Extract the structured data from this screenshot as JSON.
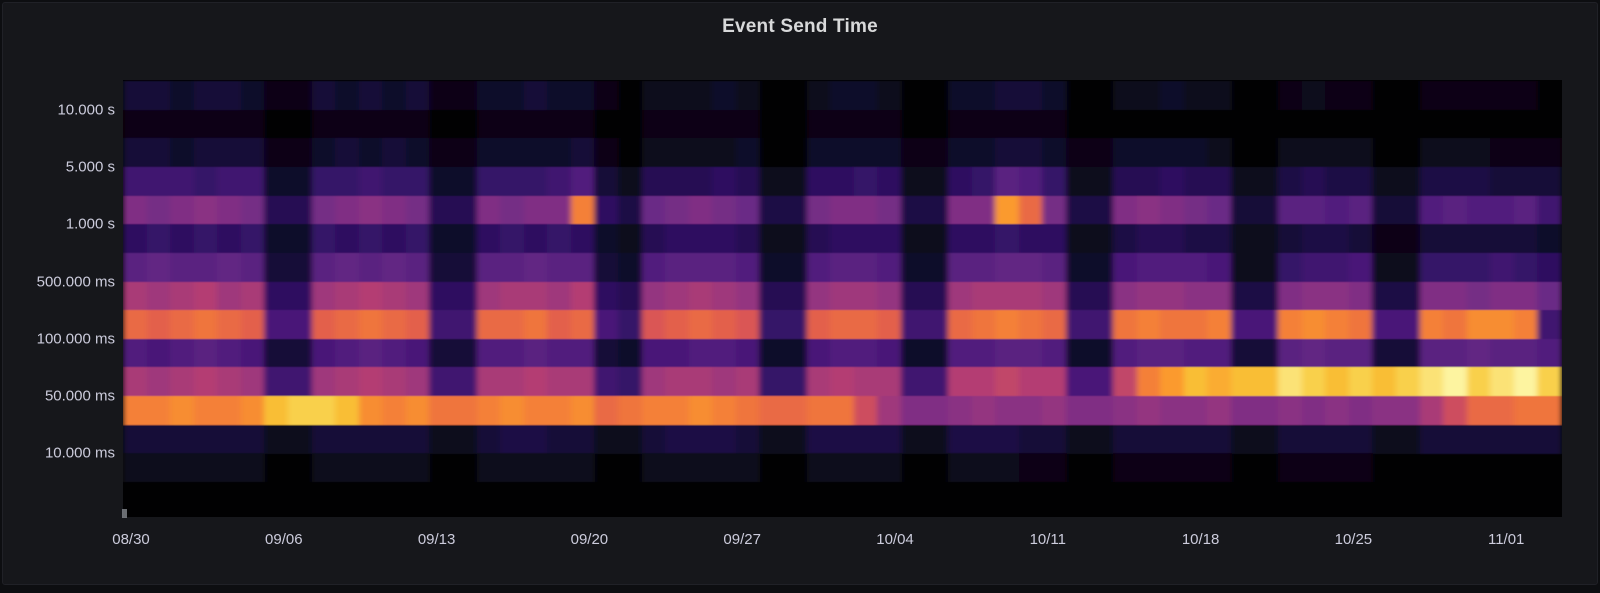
{
  "panel": {
    "title": "Event Send Time"
  },
  "colors": {
    "page_bg": "#0d0e11",
    "panel_bg": "#16171b",
    "plot_bg": "#010102",
    "title_text": "#d8d9da",
    "axis_text": "#ccccdc"
  },
  "chart_data": {
    "type": "heatmap",
    "title": "Event Send Time",
    "x_axis": {
      "tick_labels": [
        "08/30",
        "09/06",
        "09/13",
        "09/20",
        "09/27",
        "10/04",
        "10/11",
        "10/18",
        "10/25",
        "11/01"
      ],
      "unit": "date, weekly ticks"
    },
    "y_axis": {
      "tick_labels": [
        "10.000 s",
        "5.000 s",
        "1.000 s",
        "500.000 ms",
        "100.000 ms",
        "50.000 ms",
        "10.000 ms"
      ],
      "scale": "log (1-2-5 duration buckets, high at top)",
      "tick_at_row_boundary_below_row": [
        0,
        2,
        4,
        6,
        8,
        10,
        12
      ]
    },
    "columns": 61,
    "rows": 14,
    "value_encoding": "one base36 char per cell (0-9,a-z => 0-35), intensity = value/35, 0 = empty/black",
    "cells": [
      "4434431143434113343310222320023320033443002232200121100111110",
      "1111110011111001111100111110011110011111000000000000000000000",
      "4434441134343113333410222230033331133443113333200222200222111",
      "9998993388988338889b42666762277872278cb8226676622565522555444",
      "gfghgf66fghgf66gfggs75efgfe55fggf55gguqf55ghgfe44ccbc44bcbbc9",
      "7878783387878337878732677762267772277877225665522455411444443",
      "cdccdc44cdcdc44ccdcc43bcccb33bccb33ccddc33abbba22899a22888987",
      "kjkljk77jklkj77jkkjl76ijkji66ijji66jkkkj66hiihh55ghhg55ggfgge",
      "qpqrqpaapqrqp99qqrpqa8opqpo88pqqp99qrsrq99rsrrsaastsraasrtts9",
      "babcba44abcba44bbcbb43aabba33abba33bbccb33bccbb44cdcc44ccdccb",
      "kjklkj99jklkj99kklkk98jkkjk88klkk99llmllaamsuwvwwyxwxwxyzxyzx",
      "sstsstwxxwtstrrstsstqrsstsrqqrrnjgghihhigghihhigghghghhknqqrr",
      "4444442244444224554422455542255552255544224444422444422444444",
      "2222220022222002222200222220022220022211001111100111100000000"
    ],
    "notable_features": [
      "bright orange outlier in 1s row near 09/19",
      "bright orange outliers in 1s row near 10/08",
      "hot yellow band just above 50ms line from ~10/14 to 11/01",
      "golden peak in band below 50ms line around 09/06-09/10",
      "weekly dips (weekend gaps) across all bands"
    ],
    "colormap": {
      "name": "magma/inferno-like (black-purple-orange-yellow)",
      "stops": [
        [
          0.0,
          "#030106"
        ],
        [
          0.1,
          "#130b30"
        ],
        [
          0.2,
          "#2d1060"
        ],
        [
          0.3,
          "#4d1a7c"
        ],
        [
          0.4,
          "#6b2a86"
        ],
        [
          0.5,
          "#8f3382"
        ],
        [
          0.6,
          "#b43d73"
        ],
        [
          0.7,
          "#e05b50"
        ],
        [
          0.78,
          "#f1773c"
        ],
        [
          0.86,
          "#fb9b2d"
        ],
        [
          0.93,
          "#f8c838"
        ],
        [
          1.0,
          "#fdf4a0"
        ]
      ]
    }
  }
}
